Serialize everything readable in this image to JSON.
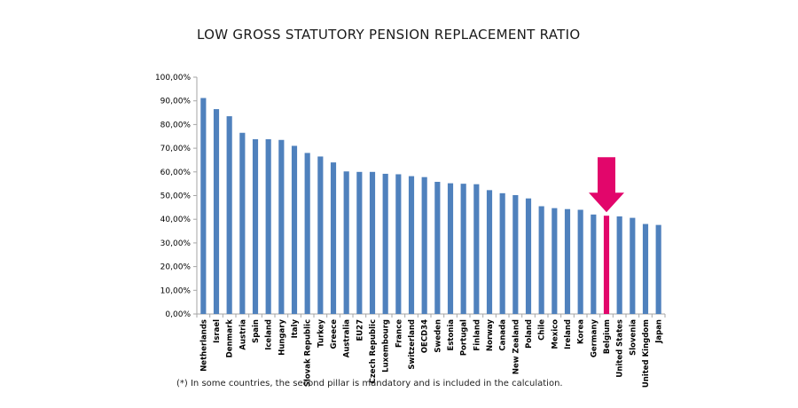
{
  "chart_data": {
    "type": "bar",
    "title": "LOW GROSS STATUTORY PENSION REPLACEMENT RATIO",
    "xlabel": "",
    "ylabel": "",
    "ylim": [
      0,
      100
    ],
    "yticks": [
      "0,00%",
      "10,00%",
      "20,00%",
      "30,00%",
      "40,00%",
      "50,00%",
      "60,00%",
      "70,00%",
      "80,00%",
      "90,00%",
      "100,00%"
    ],
    "grid": false,
    "categories": [
      "Netherlands",
      "Israel",
      "Denmark",
      "Austria",
      "Spain",
      "Iceland",
      "Hungary",
      "Italy",
      "Slovak Republic",
      "Turkey",
      "Greece",
      "Australia",
      "EU27",
      "Czech Republic",
      "Luxembourg",
      "France",
      "Switzerland",
      "OECD34",
      "Sweden",
      "Estonia",
      "Portugal",
      "Finland",
      "Norway",
      "Canada",
      "New Zealand",
      "Poland",
      "Chile",
      "Mexico",
      "Ireland",
      "Korea",
      "Germany",
      "Belgium",
      "United States",
      "Slovenia",
      "United Kingdom",
      "Japan"
    ],
    "values": [
      91.2,
      86.5,
      83.5,
      76.5,
      73.8,
      73.8,
      73.5,
      71.0,
      68.0,
      66.5,
      64.0,
      60.2,
      60.0,
      60.0,
      59.2,
      59.0,
      58.2,
      57.8,
      55.8,
      55.2,
      55.0,
      54.8,
      52.3,
      51.0,
      50.2,
      48.8,
      45.5,
      44.7,
      44.3,
      44.0,
      42.0,
      41.5,
      41.2,
      40.6,
      38.0,
      37.6
    ],
    "highlight_category": "Belgium",
    "colors": {
      "bar": "#4f81bd",
      "highlight": "#e2066b",
      "arrow": "#e2066b",
      "axis": "#a6a6a6",
      "text": "#000000"
    },
    "footnote": "(*) In some countries, the second pillar is mandatory and is included in the calculation."
  }
}
